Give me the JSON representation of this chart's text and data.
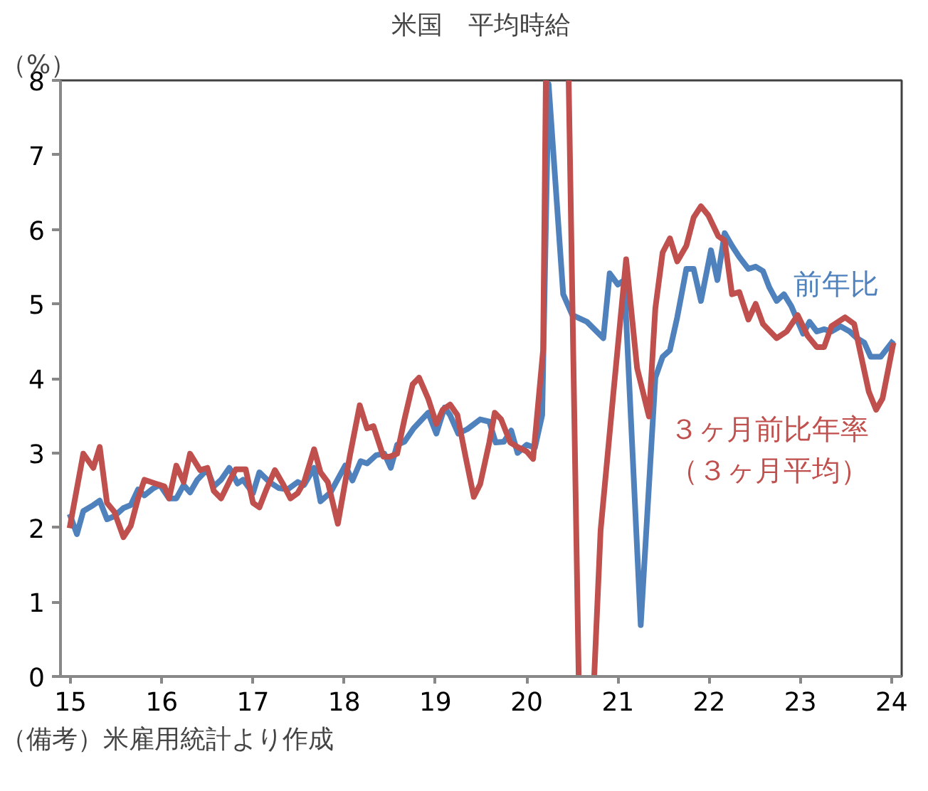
{
  "chart_data": {
    "type": "line",
    "title": "米国　平均時給",
    "ylabel": "（%）",
    "xlim": [
      14.89,
      24.11
    ],
    "ylim": [
      0,
      8
    ],
    "xticks": [
      15,
      16,
      17,
      18,
      19,
      20,
      21,
      22,
      23,
      24
    ],
    "yticks": [
      0,
      1,
      2,
      3,
      4,
      5,
      6,
      7,
      8
    ],
    "annotations": [
      "（備考）米雇用統計より作成"
    ],
    "series": [
      {
        "name": "前年比",
        "color": "#4f81bd",
        "x": [
          14.99,
          15.07,
          15.14,
          15.25,
          15.32,
          15.4,
          15.48,
          15.58,
          15.66,
          15.74,
          15.81,
          15.9,
          15.98,
          16.08,
          16.16,
          16.24,
          16.31,
          16.39,
          16.5,
          16.57,
          16.65,
          16.74,
          16.83,
          16.89,
          17.0,
          17.07,
          17.18,
          17.28,
          17.38,
          17.49,
          17.56,
          17.67,
          17.74,
          17.85,
          18.01,
          18.09,
          18.18,
          18.25,
          18.35,
          18.44,
          18.51,
          18.58,
          18.66,
          18.76,
          18.92,
          19.01,
          19.1,
          19.16,
          19.25,
          19.35,
          19.49,
          19.59,
          19.66,
          19.75,
          19.83,
          19.9,
          20.0,
          20.09,
          20.17,
          20.24,
          20.4,
          20.5,
          20.66,
          20.84,
          20.91,
          21.0,
          21.07,
          21.25,
          21.41,
          21.49,
          21.57,
          21.65,
          21.75,
          21.83,
          21.91,
          22.02,
          22.09,
          22.17,
          22.25,
          22.33,
          22.43,
          22.51,
          22.59,
          22.66,
          22.74,
          22.82,
          22.9,
          23.03,
          23.1,
          23.18,
          23.26,
          23.34,
          23.44,
          23.54,
          23.62,
          23.7,
          23.77,
          23.88,
          24.02
        ],
        "values": [
          2.18,
          1.91,
          2.22,
          2.3,
          2.36,
          2.11,
          2.15,
          2.26,
          2.3,
          2.51,
          2.43,
          2.52,
          2.57,
          2.39,
          2.39,
          2.57,
          2.47,
          2.64,
          2.78,
          2.55,
          2.64,
          2.8,
          2.59,
          2.64,
          2.46,
          2.74,
          2.61,
          2.53,
          2.51,
          2.61,
          2.57,
          2.8,
          2.35,
          2.47,
          2.83,
          2.63,
          2.89,
          2.86,
          2.97,
          2.99,
          2.8,
          3.11,
          3.15,
          3.33,
          3.54,
          3.26,
          3.61,
          3.51,
          3.26,
          3.32,
          3.45,
          3.42,
          3.14,
          3.15,
          3.3,
          3.0,
          3.11,
          3.07,
          3.51,
          7.95,
          5.13,
          4.85,
          4.76,
          4.54,
          5.41,
          5.26,
          5.32,
          0.69,
          4.01,
          4.29,
          4.38,
          4.82,
          5.47,
          5.47,
          5.04,
          5.72,
          5.32,
          5.95,
          5.78,
          5.63,
          5.47,
          5.5,
          5.44,
          5.22,
          5.04,
          5.13,
          4.97,
          4.6,
          4.76,
          4.63,
          4.66,
          4.63,
          4.7,
          4.63,
          4.54,
          4.48,
          4.29,
          4.29,
          4.51
        ]
      },
      {
        "name": "３ヶ月前比年率（３ヶ月平均）",
        "color": "#c0504d",
        "x": [
          14.99,
          15.14,
          15.25,
          15.32,
          15.4,
          15.48,
          15.58,
          15.66,
          15.74,
          15.81,
          15.93,
          16.03,
          16.08,
          16.16,
          16.24,
          16.31,
          16.42,
          16.5,
          16.57,
          16.65,
          16.75,
          16.81,
          16.92,
          17.0,
          17.07,
          17.15,
          17.24,
          17.33,
          17.41,
          17.49,
          17.56,
          17.67,
          17.74,
          17.82,
          17.93,
          18.06,
          18.17,
          18.25,
          18.32,
          18.43,
          18.5,
          18.58,
          18.66,
          18.75,
          18.82,
          18.92,
          19.01,
          19.08,
          19.16,
          19.24,
          19.33,
          19.42,
          19.49,
          19.59,
          19.65,
          19.72,
          19.82,
          19.9,
          20.0,
          20.07,
          20.11,
          20.18,
          20.21,
          20.33,
          20.46,
          20.57,
          20.65,
          20.74,
          20.81,
          20.95,
          21.09,
          21.21,
          21.34,
          21.41,
          21.49,
          21.57,
          21.65,
          21.75,
          21.83,
          21.91,
          21.99,
          22.1,
          22.17,
          22.25,
          22.33,
          22.43,
          22.51,
          22.59,
          22.74,
          22.85,
          22.97,
          23.08,
          23.18,
          23.26,
          23.34,
          23.49,
          23.59,
          23.75,
          23.83,
          23.9,
          24.02
        ],
        "values": [
          1.99,
          2.99,
          2.8,
          3.08,
          2.33,
          2.21,
          1.87,
          2.02,
          2.39,
          2.64,
          2.59,
          2.55,
          2.39,
          2.83,
          2.61,
          2.99,
          2.77,
          2.8,
          2.49,
          2.39,
          2.64,
          2.78,
          2.78,
          2.33,
          2.27,
          2.52,
          2.77,
          2.58,
          2.39,
          2.46,
          2.61,
          3.05,
          2.74,
          2.61,
          2.05,
          2.95,
          3.64,
          3.33,
          3.36,
          2.95,
          2.95,
          2.99,
          3.45,
          3.92,
          4.01,
          3.73,
          3.39,
          3.58,
          3.65,
          3.51,
          2.95,
          2.41,
          2.58,
          3.14,
          3.54,
          3.45,
          3.14,
          3.08,
          3.02,
          2.92,
          3.45,
          4.38,
          8,
          null,
          8,
          0,
          null,
          0,
          1.96,
          3.8,
          5.6,
          4.14,
          3.49,
          4.94,
          5.69,
          5.88,
          5.57,
          5.78,
          6.16,
          6.31,
          6.19,
          5.91,
          5.85,
          5.13,
          5.16,
          4.79,
          5.0,
          4.73,
          4.54,
          4.63,
          4.85,
          4.57,
          4.42,
          4.42,
          4.7,
          4.82,
          4.73,
          3.82,
          3.58,
          3.73,
          4.48
        ]
      }
    ]
  }
}
